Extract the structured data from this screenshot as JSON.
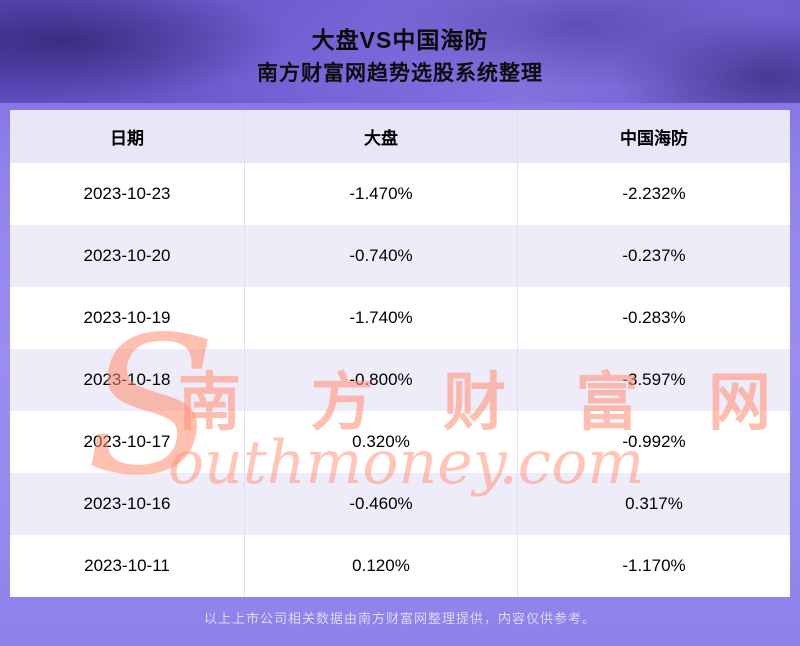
{
  "header": {
    "title": "大盘VS中国海防",
    "subtitle": "南方财富网趋势选股系统整理"
  },
  "chart_data": {
    "type": "table",
    "title": "大盘VS中国海防",
    "columns": [
      "日期",
      "大盘",
      "中国海防"
    ],
    "rows": [
      [
        "2023-10-23",
        "-1.470%",
        "-2.232%"
      ],
      [
        "2023-10-20",
        "-0.740%",
        "-0.237%"
      ],
      [
        "2023-10-19",
        "-1.740%",
        "-0.283%"
      ],
      [
        "2023-10-18",
        "-0.800%",
        "-3.597%"
      ],
      [
        "2023-10-17",
        "0.320%",
        "-0.992%"
      ],
      [
        "2023-10-16",
        "-0.460%",
        "0.317%"
      ],
      [
        "2023-10-11",
        "0.120%",
        "-1.170%"
      ]
    ]
  },
  "watermark": {
    "initial": "S",
    "cn": "南 方 财 富 网",
    "en": "outhmoney.com"
  },
  "footer": {
    "note": "以上上市公司相关数据由南方财富网整理提供，内容仅供参考。"
  },
  "colors": {
    "header_row_bg": "#e9e6f7",
    "alt_row_bg": "#efecfa",
    "page_bg_purple": "#9184ec",
    "watermark": "#ff9680"
  }
}
